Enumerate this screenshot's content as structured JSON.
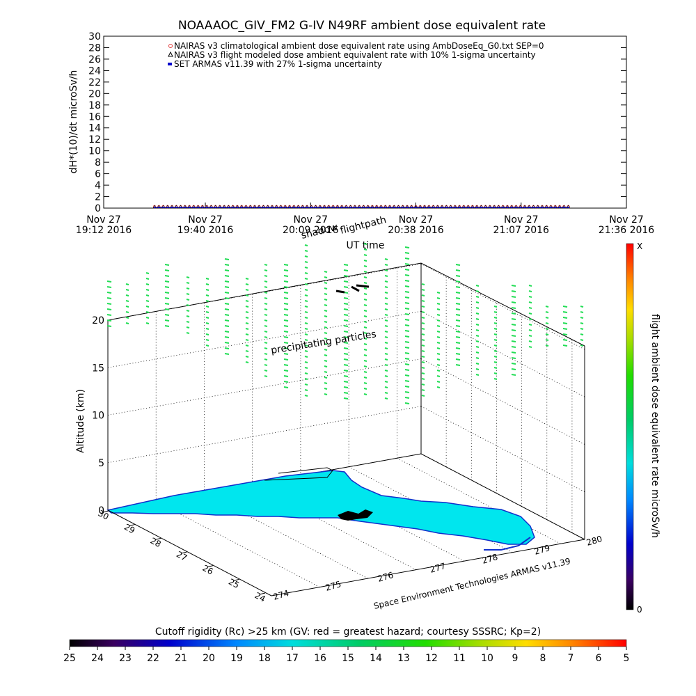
{
  "chart_data": [
    {
      "type": "line",
      "title": "NOAAAOC_GIV_FM2 G-IV    N49RF  ambient dose equivalent rate",
      "ylabel": "dH*(10)/dt microSv/h",
      "xlabel": "UT time",
      "ylim": [
        0,
        30
      ],
      "y_ticks": [
        "0",
        "2",
        "4",
        "6",
        "8",
        "10",
        "12",
        "14",
        "16",
        "18",
        "20",
        "22",
        "24",
        "26",
        "28",
        "30"
      ],
      "x_ticks": [
        {
          "date": "Nov 27",
          "time": "19:12 2016"
        },
        {
          "date": "Nov 27",
          "time": "19:40 2016"
        },
        {
          "date": "Nov 27",
          "time": "20:09 2016"
        },
        {
          "date": "Nov 27",
          "time": "20:38 2016"
        },
        {
          "date": "Nov 27",
          "time": "21:07 2016"
        },
        {
          "date": "Nov 27",
          "time": "21:36 2016"
        }
      ],
      "xlim": [
        "19:12",
        "21:36"
      ],
      "legend_position": "top",
      "series": [
        {
          "name": "NAIRAS v3 climatological ambient dose equivalent rate using AmbDoseEq_G0.txt SEP=0",
          "color": "#e03c3c",
          "marker": "circle",
          "x_range": [
            "19:26",
            "21:20"
          ],
          "value": 0
        },
        {
          "name": "NAIRAS v3 flight modeled dose ambient equivalent rate with 10% 1-sigma uncertainty",
          "color": "#000000",
          "marker": "triangle",
          "x_range": [
            "19:26",
            "21:20"
          ],
          "value": 0
        },
        {
          "name": "SET ARMAS v11.39 with 27% 1-sigma uncertainty",
          "color": "#0000cc",
          "marker": "square",
          "x_range": [
            "19:26",
            "21:20"
          ],
          "value": 0
        }
      ]
    },
    {
      "type": "scatter",
      "title": "flightpath",
      "shadow_label": "shadow",
      "annotation": "precipitating particles",
      "zlabel": "Altitude (km)",
      "z_ticks": [
        "0",
        "5",
        "10",
        "15",
        "20"
      ],
      "lat_ticks": [
        "30",
        "29",
        "28",
        "27",
        "26",
        "25",
        "24"
      ],
      "lon_ticks": [
        "274",
        "275",
        "276",
        "277",
        "278",
        "279",
        "280"
      ],
      "credit": "Space Environment Technologies ARMAS v11.39",
      "colorbar": {
        "label": "flight ambient dose equivalent rate microSv/h",
        "max_label": "X",
        "min_label": "0"
      },
      "particle_color": "#22dd55"
    },
    {
      "type": "heatmap",
      "title": "Cutoff rigidity (Rc) >25 km (GV: red = greatest hazard; courtesy SSSRC; Kp=2)",
      "tick_labels": [
        "25",
        "24",
        "23",
        "22",
        "21",
        "20",
        "19",
        "18",
        "17",
        "16",
        "15",
        "14",
        "13",
        "12",
        "11",
        "10",
        "9",
        "8",
        "7",
        "6",
        "5"
      ]
    }
  ]
}
